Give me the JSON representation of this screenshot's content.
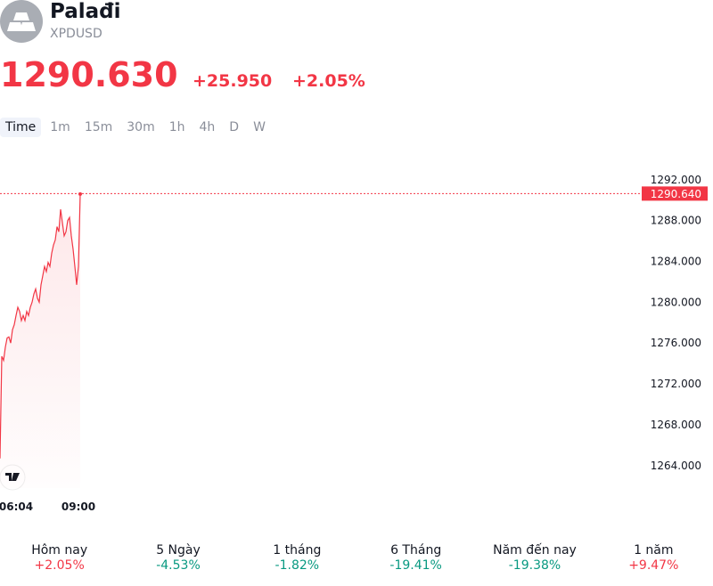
{
  "header": {
    "name": "Palađi",
    "symbol": "XPDUSD"
  },
  "quote": {
    "price": "1290.630",
    "change": "+25.950",
    "change_percent": "+2.05%"
  },
  "timeframes": [
    "Time",
    "1m",
    "15m",
    "30m",
    "1h",
    "4h",
    "D",
    "W"
  ],
  "selected_timeframe": "Time",
  "chart": {
    "type": "line",
    "color": "#f23645",
    "categories": [
      null,
      null,
      null,
      null,
      null,
      null,
      null,
      null,
      null,
      "06:04",
      null,
      null,
      null,
      null,
      null,
      null,
      null,
      null,
      null,
      null,
      null,
      null,
      null,
      null,
      null,
      null,
      null,
      null,
      null,
      null,
      null,
      null,
      null,
      null,
      null,
      null,
      null,
      null,
      null,
      null,
      null,
      null,
      null,
      null,
      "09:00",
      null
    ],
    "values": [
      1264.7,
      1274.7,
      1274.3,
      1275.6,
      1276.5,
      1276.6,
      1276.0,
      1277.3,
      1277.8,
      1278.7,
      1279.5,
      1279.1,
      1278.2,
      1278.7,
      1278.2,
      1279.1,
      1278.7,
      1279.5,
      1280.0,
      1280.8,
      1281.3,
      1280.4,
      1280.0,
      1281.7,
      1282.6,
      1283.5,
      1283.0,
      1283.9,
      1283.5,
      1284.8,
      1285.6,
      1286.1,
      1287.4,
      1286.9,
      1289.1,
      1287.8,
      1286.5,
      1286.9,
      1288.0,
      1288.3,
      1286.5,
      1285.2,
      1283.5,
      1281.7,
      1283.5,
      1290.6
    ],
    "ylim": [
      1261.8,
      1293.9
    ],
    "yticks": [
      {
        "value": 1264,
        "label": "1264.000"
      },
      {
        "value": 1268,
        "label": "1268.000"
      },
      {
        "value": 1272,
        "label": "1272.000"
      },
      {
        "value": 1276,
        "label": "1276.000"
      },
      {
        "value": 1280,
        "label": "1280.000"
      },
      {
        "value": 1284,
        "label": "1284.000"
      },
      {
        "value": 1288,
        "label": "1288.000"
      },
      {
        "value": 1292,
        "label": "1292.000"
      }
    ],
    "last_value": {
      "value": 1290.64,
      "label": "1290.640"
    }
  },
  "performance": [
    {
      "label": "Hôm nay",
      "value": "+2.05%"
    },
    {
      "label": "5 Ngày",
      "value": "-4.53%"
    },
    {
      "label": "1 tháng",
      "value": "-1.82%"
    },
    {
      "label": "6 Tháng",
      "value": "-19.41%"
    },
    {
      "label": "Năm đến nay",
      "value": "-19.38%"
    },
    {
      "label": "1 năm",
      "value": "+9.47%"
    }
  ]
}
